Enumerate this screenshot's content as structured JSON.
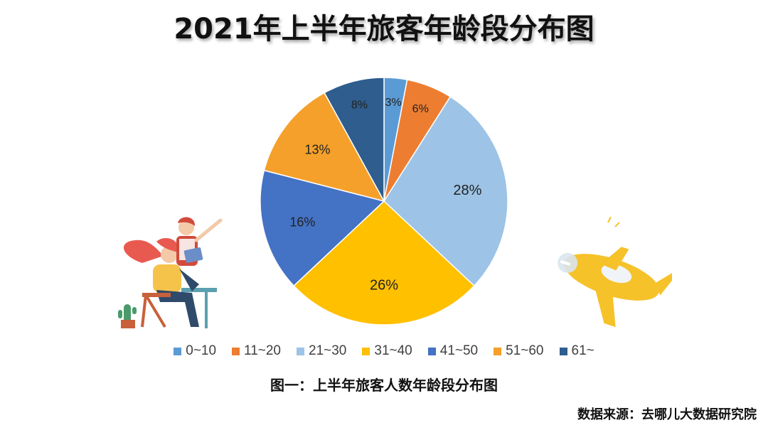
{
  "title": "2021年上半年旅客年龄段分布图",
  "caption": "图一：上半年旅客人数年龄段分布图",
  "source": "数据来源：去哪儿大数据研究院",
  "chart_data": {
    "type": "pie",
    "title": "2021年上半年旅客年龄段分布图",
    "categories": [
      "0~10",
      "11~20",
      "21~30",
      "31~40",
      "41~50",
      "51~60",
      "61~"
    ],
    "values": [
      3,
      6,
      28,
      26,
      16,
      13,
      8
    ],
    "labels": [
      "3%",
      "6%",
      "28%",
      "26%",
      "16%",
      "13%",
      "8%"
    ],
    "colors": [
      "#5B9BD5",
      "#ED7D31",
      "#9DC3E6",
      "#FFC000",
      "#4472C4",
      "#F4A02A",
      "#2E5D8E"
    ],
    "legend_position": "bottom",
    "start": "12 o'clock, clockwise"
  }
}
